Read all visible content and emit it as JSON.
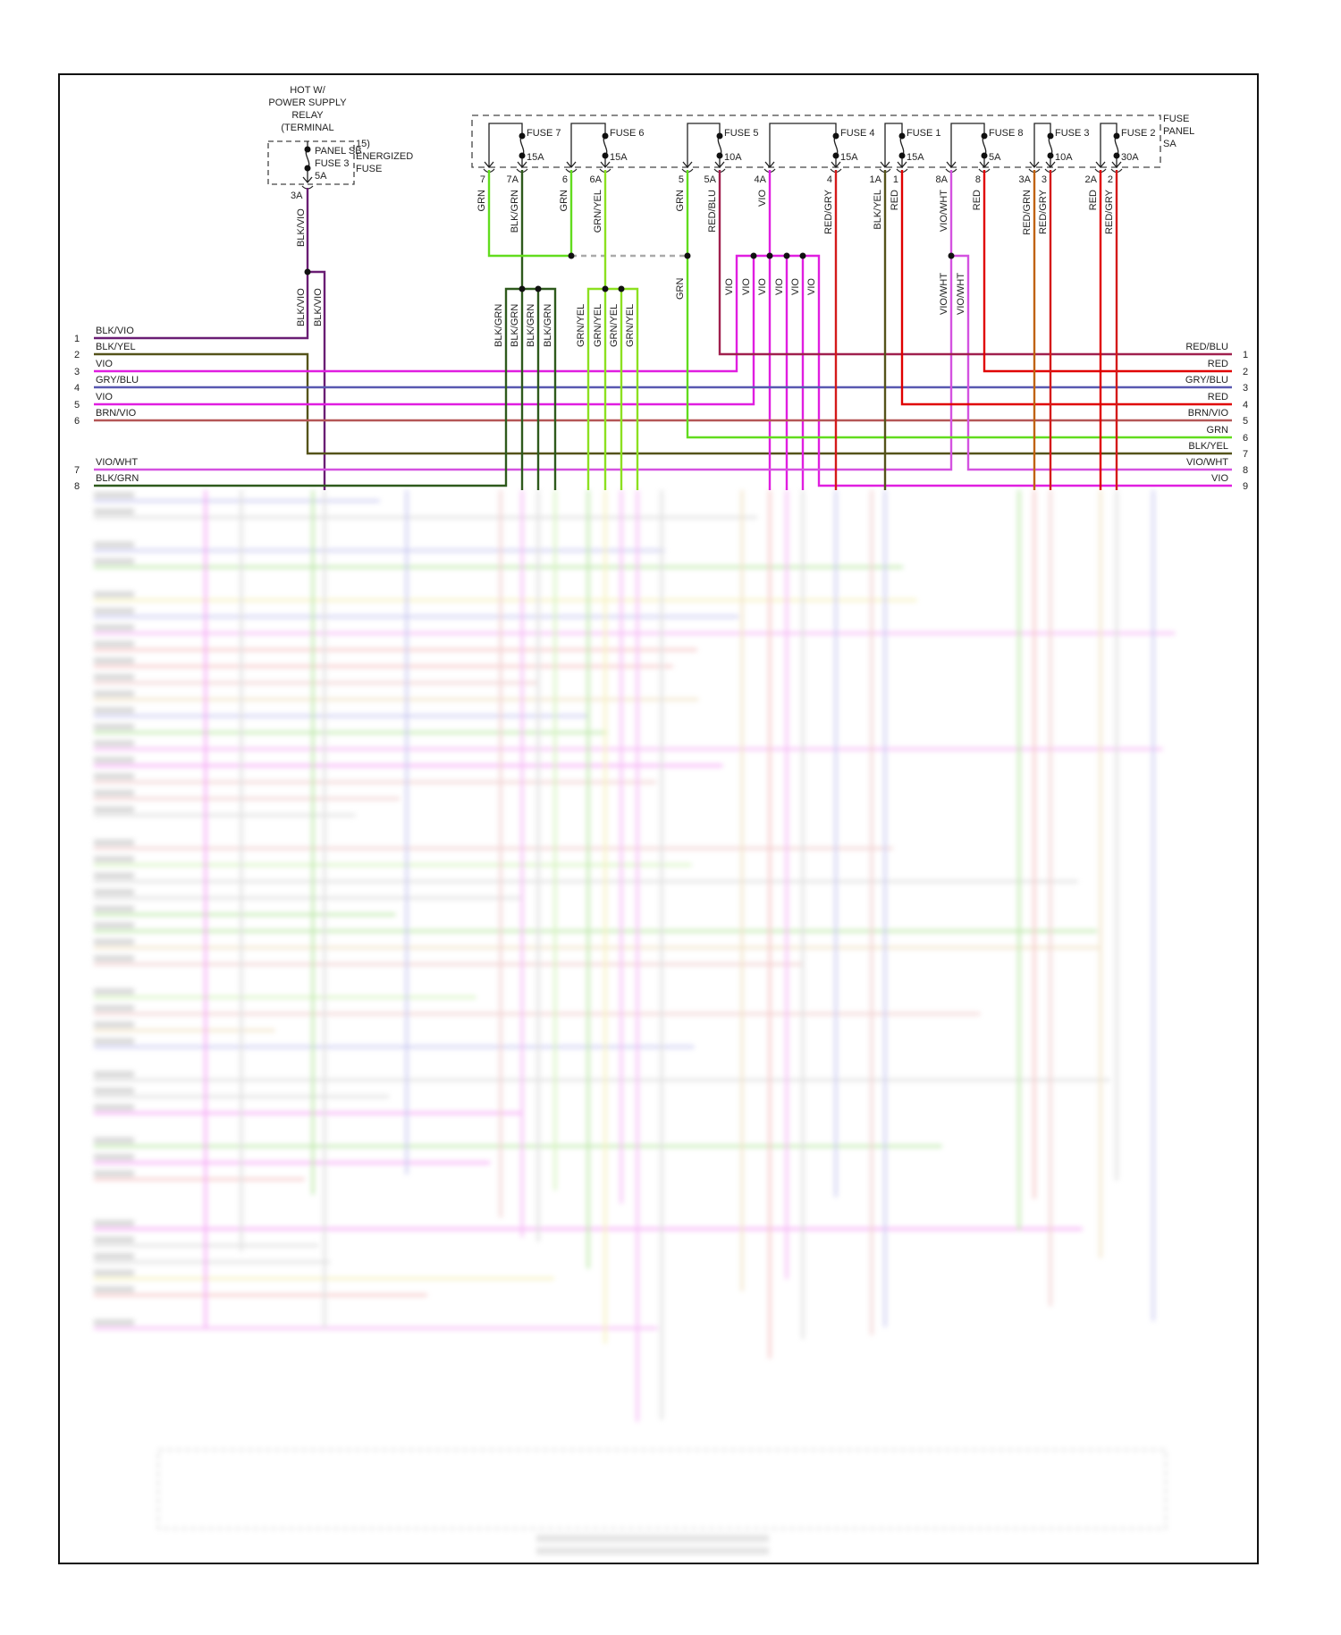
{
  "relay": {
    "title_lines": [
      "HOT W/",
      "POWER SUPPLY",
      "RELAY",
      "(TERMINAL"
    ],
    "fuse_lines": [
      "PANEL SB",
      "FUSE 3",
      "5A"
    ],
    "side_lines": [
      "15)",
      "ENERGIZED",
      "FUSE"
    ],
    "pin": "3A",
    "wire_labels": [
      "BLK/VIO",
      "BLK/VIO",
      "BLK/VIO"
    ]
  },
  "fuse_panel": {
    "label_lines": [
      "FUSE",
      "PANEL",
      "SA"
    ],
    "fuses": [
      {
        "name": "FUSE 7",
        "rating": "15A",
        "pin_left": "7",
        "pin_right": "7A",
        "wire_left": "GRN",
        "wire_right": "BLK/GRN"
      },
      {
        "name": "FUSE 6",
        "rating": "15A",
        "pin_left": "6",
        "pin_right": "6A",
        "wire_left": "GRN",
        "wire_right": "GRN/YEL"
      },
      {
        "name": "FUSE 5",
        "rating": "10A",
        "pin_left": "5",
        "pin_right": "5A",
        "wire_left": "GRN",
        "wire_right": "RED/BLU"
      },
      {
        "name": "FUSE 4",
        "rating": "15A",
        "pin_left": "4A",
        "pin_right": "4",
        "wire_left": "VIO",
        "wire_right": "RED/GRY"
      },
      {
        "name": "FUSE 1",
        "rating": "15A",
        "pin_left": "1A",
        "pin_right": "1",
        "wire_left": "BLK/YEL",
        "wire_right": "RED"
      },
      {
        "name": "FUSE 8",
        "rating": "5A",
        "pin_left": "8A",
        "pin_right": "8",
        "wire_left": "VIO/WHT",
        "wire_right": "RED"
      },
      {
        "name": "FUSE 3",
        "rating": "10A",
        "pin_left": "3A",
        "pin_right": "3",
        "wire_left": "RED/GRN",
        "wire_right": "RED/GRY"
      },
      {
        "name": "FUSE 2",
        "rating": "30A",
        "pin_left": "2A",
        "pin_right": "2",
        "wire_left": "RED",
        "wire_right": "RED/GRY"
      }
    ]
  },
  "splice_labels": {
    "grn": "GRN",
    "blk_grn": [
      "BLK/GRN",
      "BLK/GRN",
      "BLK/GRN",
      "BLK/GRN"
    ],
    "grn_yel": [
      "GRN/YEL",
      "GRN/YEL",
      "GRN/YEL",
      "GRN/YEL"
    ],
    "vio": [
      "VIO",
      "VIO",
      "VIO",
      "VIO",
      "VIO",
      "VIO"
    ],
    "vio_wht": [
      "VIO/WHT",
      "VIO/WHT"
    ]
  },
  "left_connector": [
    {
      "pin": "1",
      "wire": "BLK/VIO"
    },
    {
      "pin": "2",
      "wire": "BLK/YEL"
    },
    {
      "pin": "3",
      "wire": "VIO"
    },
    {
      "pin": "4",
      "wire": "GRY/BLU"
    },
    {
      "pin": "5",
      "wire": "VIO"
    },
    {
      "pin": "6",
      "wire": "BRN/VIO"
    },
    {
      "pin": "7",
      "wire": "VIO/WHT"
    },
    {
      "pin": "8",
      "wire": "BLK/GRN"
    }
  ],
  "right_connector": [
    {
      "pin": "1",
      "wire": "RED/BLU"
    },
    {
      "pin": "2",
      "wire": "RED"
    },
    {
      "pin": "3",
      "wire": "GRY/BLU"
    },
    {
      "pin": "4",
      "wire": "RED"
    },
    {
      "pin": "5",
      "wire": "BRN/VIO"
    },
    {
      "pin": "6",
      "wire": "GRN"
    },
    {
      "pin": "7",
      "wire": "BLK/YEL"
    },
    {
      "pin": "8",
      "wire": "VIO/WHT"
    },
    {
      "pin": "9",
      "wire": "VIO"
    }
  ],
  "wire_colors": {
    "VIO": "#e01ee0",
    "RED": "#e00000",
    "GRN": "#62dc1e",
    "BLK/GRN": "#2e5a1c",
    "BLK/VIO": "#6a1e74",
    "BLK/YEL": "#55531a",
    "GRY/BLU": "#5858b0",
    "BRN/VIO": "#b45656",
    "RED/BLU": "#a0204e",
    "RED/GRY": "#d41a1a",
    "RED/GRN": "#c0620e",
    "VIO/WHT": "#d452e0",
    "GRN/YEL": "#8ce020",
    "SPLICE": "#aaaaaa"
  }
}
